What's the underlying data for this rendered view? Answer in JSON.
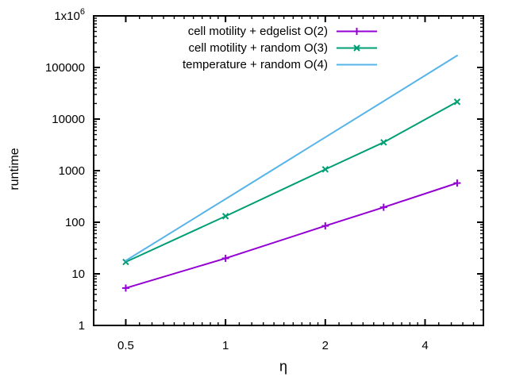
{
  "chart_data": {
    "type": "line",
    "title": "",
    "xlabel": "η",
    "ylabel": "runtime",
    "x_scale": "log2",
    "y_scale": "log10",
    "xlim": [
      0.4,
      6
    ],
    "ylim": [
      1,
      1000000
    ],
    "grid": false,
    "legend_position": "top-center-inside",
    "background_color": "#ffffff",
    "axis_color": "#000000",
    "x": [
      0.5,
      1,
      2,
      3,
      5
    ],
    "series": [
      {
        "name": "cell motility + edgelist O(2)",
        "color": "#9400d3",
        "marker": "plus",
        "values": [
          5.3,
          20,
          85,
          195,
          575
        ]
      },
      {
        "name": "cell motility + random O(3)",
        "color": "#009e73",
        "marker": "cross",
        "values": [
          17,
          131,
          1060,
          3540,
          21600
        ]
      },
      {
        "name": "temperature + random O(4)",
        "color": "#56b4e9",
        "marker": "none",
        "values": [
          18,
          282,
          4440,
          22200,
          170000
        ]
      }
    ],
    "x_ticks": [
      {
        "v": 0.5,
        "label": "0.5"
      },
      {
        "v": 1,
        "label": "1"
      },
      {
        "v": 2,
        "label": "2"
      },
      {
        "v": 4,
        "label": "4"
      }
    ],
    "x_minor_ticks": [
      0.55,
      0.6,
      0.65,
      0.7,
      0.75,
      0.8,
      0.85,
      0.9,
      0.95,
      1.1,
      1.2,
      1.3,
      1.4,
      1.5,
      1.6,
      1.7,
      1.8,
      1.9,
      2.2,
      2.4,
      2.6,
      2.8,
      3.0,
      3.2,
      3.4,
      3.6,
      3.8,
      4.4,
      4.8,
      5.2,
      5.6
    ],
    "y_ticks": [
      {
        "v": 1,
        "label": "1"
      },
      {
        "v": 10,
        "label": "10"
      },
      {
        "v": 100,
        "label": "100"
      },
      {
        "v": 1000,
        "label": "1000"
      },
      {
        "v": 10000,
        "label": "10000"
      },
      {
        "v": 100000,
        "label": "100000"
      },
      {
        "v": 1000000,
        "label": "1x10^6"
      }
    ]
  }
}
